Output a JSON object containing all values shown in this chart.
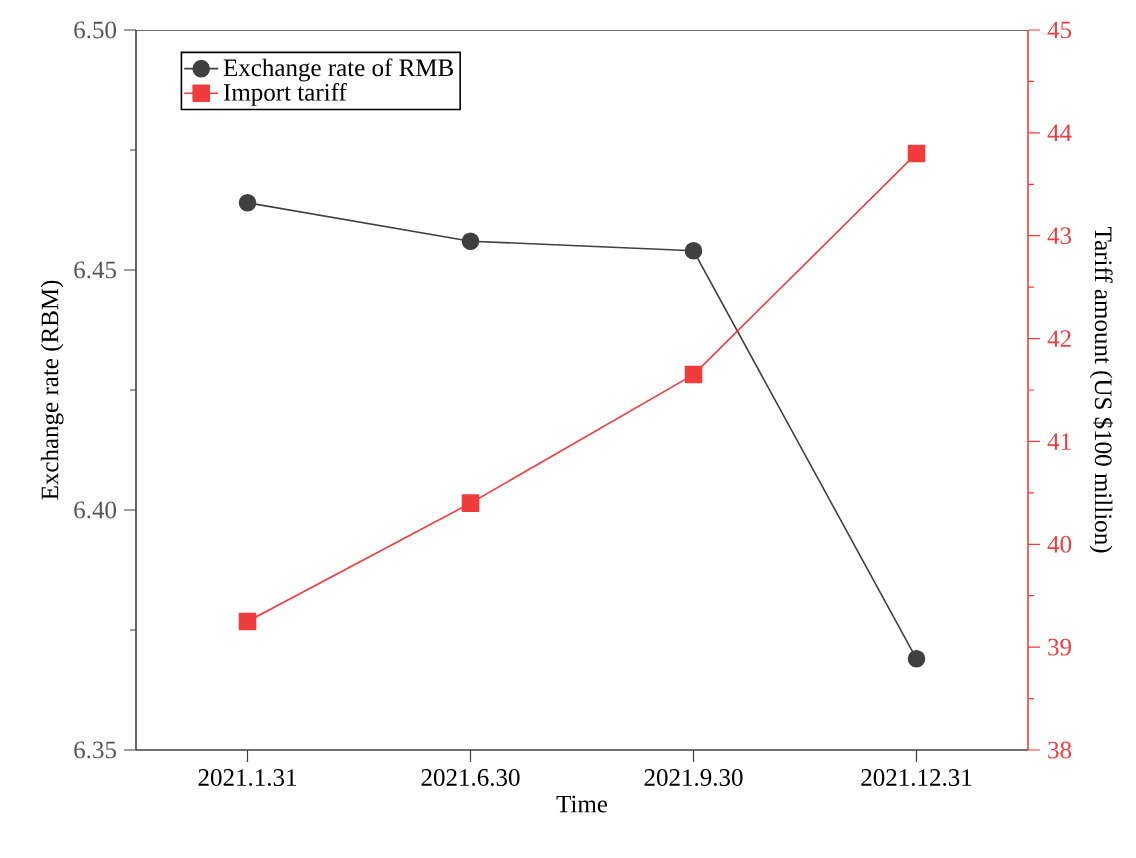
{
  "chart_data": {
    "type": "line",
    "xlabel": "Time",
    "ylabel": "Exchange rate (RBM)",
    "y2label": "Tariff amount (US $100 million)",
    "categories": [
      "2021.1.31",
      "2021.6.30",
      "2021.9.30",
      "2021.12.31"
    ],
    "series": [
      {
        "name": "Exchange rate of RMB",
        "color": "#404040",
        "marker": "circle",
        "values": [
          6.464,
          6.456,
          6.454,
          6.369
        ]
      },
      {
        "name": "Import tariff",
        "color": "#f03c3c",
        "marker": "square",
        "axis": "y2",
        "values": [
          39.25,
          40.4,
          41.65,
          43.8
        ]
      }
    ],
    "ylim": [
      6.35,
      6.5
    ],
    "yticks": [
      6.35,
      {
        "value": 6.375,
        "label": null
      },
      {
        "value": 6.4,
        "label": "6.40"
      },
      {
        "value": 6.425,
        "label": null
      },
      6.45,
      {
        "value": 6.475,
        "label": null
      },
      {
        "value": 6.5,
        "label": "6.50"
      }
    ],
    "y2lim": [
      38,
      45
    ],
    "y2ticks": [
      38,
      {
        "value": 38.5,
        "label": null
      },
      39,
      {
        "value": 39.5,
        "label": null
      },
      40,
      {
        "value": 40.5,
        "label": null
      },
      41,
      {
        "value": 41.5,
        "label": null
      },
      42,
      {
        "value": 42.5,
        "label": null
      },
      43,
      {
        "value": 43.5,
        "label": null
      },
      44,
      {
        "value": 44.5,
        "label": null
      },
      45
    ],
    "legend": "top left",
    "grid": false,
    "line_style": "solid"
  }
}
